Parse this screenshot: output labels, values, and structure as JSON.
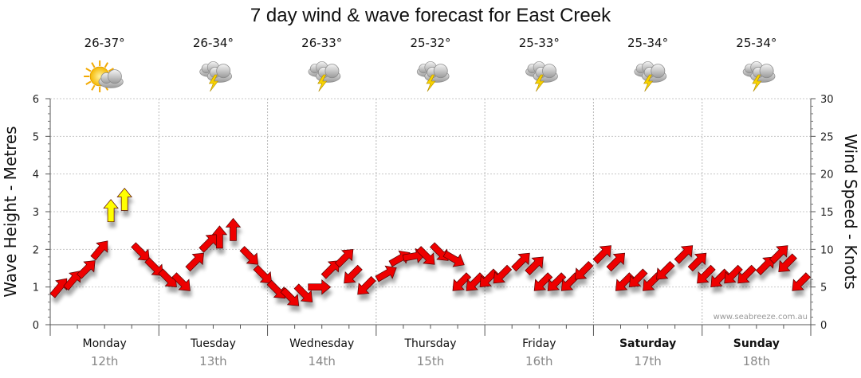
{
  "chart_data": {
    "type": "line",
    "title": "7 day wind & wave forecast for East Creek",
    "ylabel_left": "Wave Height - Metres",
    "ylabel_right": "Wind Speed - Knots",
    "ylim_left": [
      0,
      6
    ],
    "ylim_right": [
      0,
      30
    ],
    "yticks_left": [
      "0",
      "1",
      "2",
      "3",
      "4",
      "5",
      "6"
    ],
    "yticks_right": [
      "0",
      "5",
      "10",
      "15",
      "20",
      "25",
      "30"
    ],
    "grid": true,
    "credit": "www.seabreeze.com.au",
    "days": [
      {
        "day": "Monday",
        "date": "12th",
        "temp": "26-37°",
        "icon": "sun-cloud-icon",
        "bold": false
      },
      {
        "day": "Tuesday",
        "date": "13th",
        "temp": "26-34°",
        "icon": "thunderstorm-icon",
        "bold": false
      },
      {
        "day": "Wednesday",
        "date": "14th",
        "temp": "26-33°",
        "icon": "thunderstorm-icon",
        "bold": false
      },
      {
        "day": "Thursday",
        "date": "15th",
        "temp": "25-32°",
        "icon": "thunderstorm-icon",
        "bold": false
      },
      {
        "day": "Friday",
        "date": "16th",
        "temp": "25-33°",
        "icon": "thunderstorm-icon",
        "bold": false
      },
      {
        "day": "Saturday",
        "date": "17th",
        "temp": "25-34°",
        "icon": "thunderstorm-icon",
        "bold": true
      },
      {
        "day": "Sunday",
        "date": "18th",
        "temp": "25-34°",
        "icon": "thunderstorm-icon",
        "bold": true
      }
    ],
    "series": [
      {
        "units": "knots",
        "color_normal": "#ee0000",
        "color_strong": "#ffff00",
        "strong_threshold_knots": 13,
        "x_hours": [
          0,
          3,
          6,
          9,
          12,
          15,
          18,
          21,
          24,
          27,
          30,
          33,
          36,
          39,
          42,
          45,
          48,
          51,
          54,
          57,
          60,
          63,
          66,
          69,
          72,
          75,
          78,
          81,
          84,
          87,
          90,
          93,
          96,
          99,
          102,
          105,
          108,
          111,
          114,
          117,
          120,
          123,
          126,
          129,
          132,
          135,
          138,
          141,
          144,
          147,
          150,
          153,
          156,
          159,
          162,
          165
        ],
        "wind_knots": [
          4.5,
          5.5,
          7,
          9.5,
          14.5,
          16,
          10,
          8,
          6.5,
          6,
          8,
          10.5,
          11,
          12,
          9.5,
          7,
          5,
          4,
          4.5,
          5,
          7,
          8.5,
          7,
          5.5,
          6.5,
          8.5,
          9,
          9.5,
          10,
          9,
          6,
          6,
          6.5,
          7,
          8,
          7.5,
          6,
          6,
          6,
          7.5,
          9,
          8,
          6,
          6.5,
          6,
          7.5,
          9,
          8,
          7,
          6.5,
          7,
          7,
          7.5,
          9,
          8.5,
          6
        ],
        "wind_dir_deg": [
          40,
          40,
          45,
          40,
          0,
          0,
          135,
          135,
          135,
          135,
          45,
          45,
          0,
          0,
          135,
          135,
          135,
          135,
          135,
          90,
          45,
          45,
          225,
          225,
          60,
          60,
          80,
          135,
          135,
          120,
          225,
          225,
          225,
          225,
          45,
          45,
          225,
          225,
          225,
          225,
          45,
          45,
          225,
          225,
          225,
          225,
          45,
          45,
          225,
          225,
          225,
          225,
          45,
          45,
          225,
          225
        ]
      }
    ]
  }
}
